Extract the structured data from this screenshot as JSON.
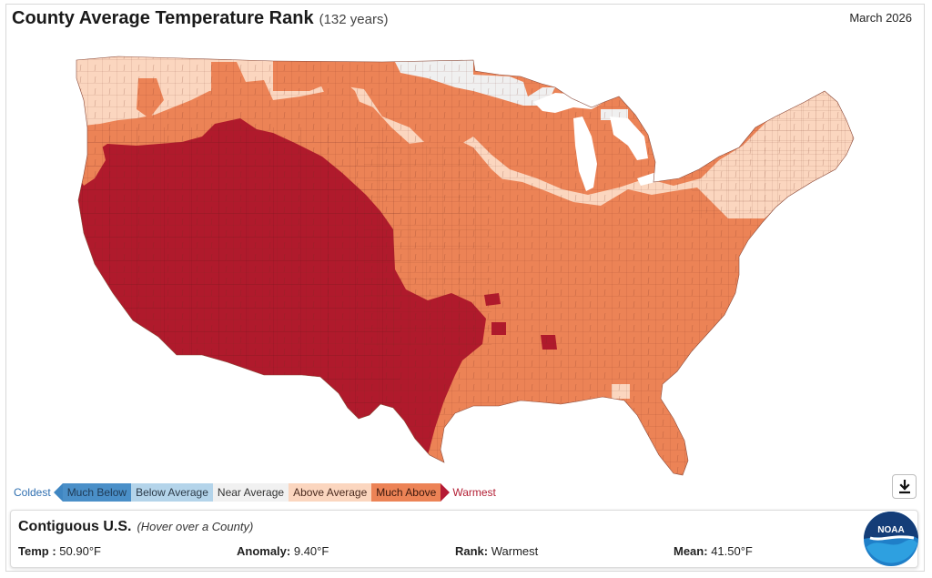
{
  "header": {
    "title": "County Average Temperature Rank",
    "subtitle": "(132 years)",
    "date": "March 2026"
  },
  "legend": {
    "coldest": "Coldest",
    "warmest": "Warmest",
    "items": [
      {
        "label": "Much Below",
        "color": "#4a8fc8"
      },
      {
        "label": "Below Average",
        "color": "#b4d4ea"
      },
      {
        "label": "Near Average",
        "color": "#f1f1f1"
      },
      {
        "label": "Above Average",
        "color": "#fbd6bf"
      },
      {
        "label": "Much Above",
        "color": "#ec8356"
      }
    ],
    "record_warm_color": "#b01a2c"
  },
  "map_colors": {
    "above_average": "#fbd6bf",
    "much_above": "#ec8356",
    "record_warmest": "#b01a2c",
    "near_average": "#f0f0f0",
    "county_lines": "#7a3a2a"
  },
  "info_panel": {
    "region": "Contiguous U.S.",
    "hint": "(Hover over a County)",
    "temp_label": "Temp :",
    "temp_value": "50.90°F",
    "anomaly_label": "Anomaly:",
    "anomaly_value": "9.40°F",
    "rank_label": "Rank:",
    "rank_value": "Warmest",
    "mean_label": "Mean:",
    "mean_value": "41.50°F"
  },
  "logo": {
    "text": "NOAA"
  },
  "icons": {
    "download": "download-icon"
  }
}
